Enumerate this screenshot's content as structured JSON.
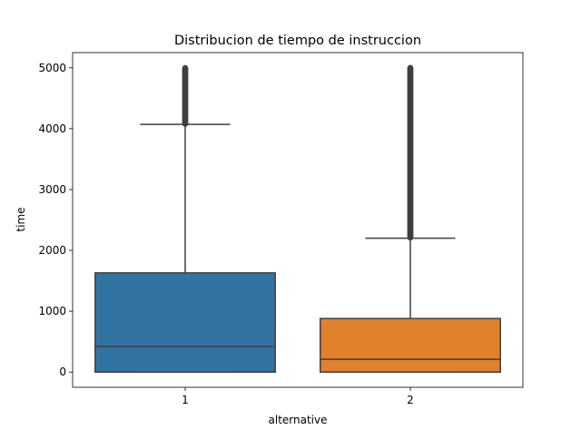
{
  "chart_data": {
    "type": "box",
    "title": "Distribucion de tiempo de instruccion",
    "xlabel": "alternative",
    "ylabel": "time",
    "ylim": [
      -250,
      5250
    ],
    "yticks": [
      0,
      1000,
      2000,
      3000,
      4000,
      5000
    ],
    "categories": [
      "1",
      "2"
    ],
    "boxes": [
      {
        "category": "1",
        "color": "#3274a1",
        "whislo": 0,
        "q1": 0,
        "median": 420,
        "q3": 1630,
        "whishi": 4070,
        "outliers_range": [
          4070,
          5000
        ]
      },
      {
        "category": "2",
        "color": "#e1812c",
        "whislo": 0,
        "q1": 0,
        "median": 210,
        "q3": 880,
        "whishi": 2200,
        "outliers_range": [
          2200,
          5000
        ]
      }
    ],
    "grid": false
  }
}
